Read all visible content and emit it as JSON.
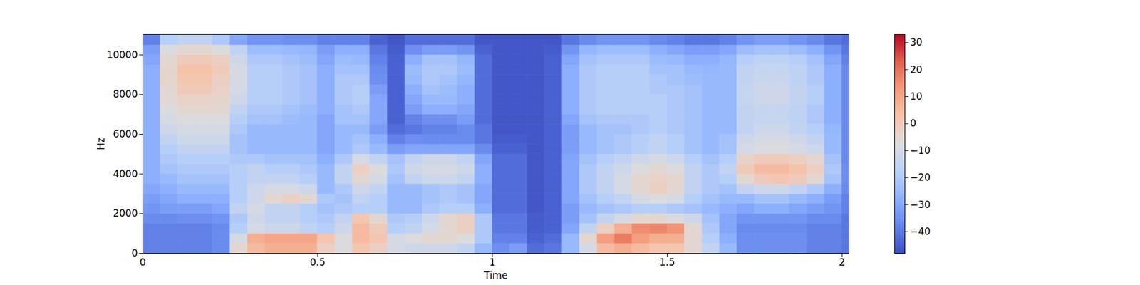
{
  "chart_data": {
    "type": "heatmap",
    "x_label": "Time",
    "y_label": "Hz",
    "xlim": [
      0,
      2.02
    ],
    "ylim": [
      0,
      11025
    ],
    "xticks": [
      0,
      0.5,
      1,
      1.5,
      2
    ],
    "yticks": [
      0,
      2000,
      4000,
      6000,
      8000,
      10000
    ],
    "color": "coolwarm",
    "x_bins": [
      0,
      0.05,
      0.1,
      0.15,
      0.2,
      0.25,
      0.3,
      0.35,
      0.4,
      0.45,
      0.5,
      0.55,
      0.6,
      0.65,
      0.7,
      0.75,
      0.8,
      0.85,
      0.9,
      0.95,
      1.0,
      1.05,
      1.1,
      1.15,
      1.2,
      1.25,
      1.3,
      1.35,
      1.4,
      1.45,
      1.5,
      1.55,
      1.6,
      1.65,
      1.7,
      1.75,
      1.8,
      1.85,
      1.9,
      1.95,
      2.0,
      2.02
    ],
    "y_bins": [
      0,
      500,
      1000,
      1500,
      2000,
      2500,
      3000,
      3500,
      4000,
      4500,
      5000,
      5500,
      6000,
      6500,
      7000,
      7500,
      8000,
      8500,
      9000,
      9500,
      10000,
      10500,
      11025
    ],
    "z": [
      [
        -38,
        -38,
        -38,
        -38,
        -36,
        -5,
        5,
        8,
        8,
        8,
        -2,
        -8,
        2,
        -2,
        -10,
        -12,
        -12,
        -12,
        -15,
        -25,
        -35,
        -32,
        -42,
        -40,
        -25,
        -10,
        5,
        8,
        5,
        2,
        2,
        -5,
        -15,
        -25,
        -35,
        -35,
        -35,
        -35,
        -38,
        -38,
        -40
      ],
      [
        -38,
        -38,
        -38,
        -38,
        -36,
        -10,
        8,
        10,
        10,
        10,
        2,
        -8,
        5,
        2,
        -10,
        -8,
        -5,
        -5,
        -8,
        -20,
        -38,
        -38,
        -44,
        -42,
        -25,
        -5,
        12,
        18,
        12,
        8,
        8,
        -5,
        -18,
        -28,
        -35,
        -35,
        -35,
        -35,
        -38,
        -38,
        -40
      ],
      [
        -38,
        -38,
        -38,
        -38,
        -36,
        -18,
        -10,
        -12,
        -12,
        -15,
        -18,
        -12,
        5,
        0,
        -18,
        -15,
        -10,
        -5,
        -2,
        -20,
        -40,
        -40,
        -45,
        -44,
        -30,
        -15,
        -2,
        8,
        15,
        16,
        14,
        -5,
        -20,
        -30,
        -36,
        -36,
        -36,
        -36,
        -38,
        -38,
        -40
      ],
      [
        -36,
        -36,
        -35,
        -35,
        -34,
        -20,
        -12,
        -15,
        -15,
        -18,
        -20,
        -15,
        2,
        -5,
        -20,
        -18,
        -12,
        -5,
        -2,
        -20,
        -40,
        -40,
        -45,
        -44,
        -32,
        -22,
        -15,
        -10,
        -5,
        -5,
        -8,
        -12,
        -22,
        -30,
        -34,
        -34,
        -34,
        -34,
        -36,
        -36,
        -40
      ],
      [
        -34,
        -32,
        -32,
        -32,
        -30,
        -15,
        -10,
        -15,
        -15,
        -18,
        -22,
        -20,
        -18,
        -18,
        -25,
        -25,
        -20,
        -18,
        -18,
        -28,
        -42,
        -42,
        -46,
        -44,
        -32,
        -25,
        -22,
        -20,
        -18,
        -18,
        -20,
        -22,
        -25,
        -28,
        -30,
        -28,
        -28,
        -30,
        -32,
        -34,
        -38
      ],
      [
        -32,
        -30,
        -28,
        -28,
        -28,
        -18,
        -12,
        -5,
        -2,
        -5,
        -20,
        -22,
        -15,
        -18,
        -25,
        -25,
        -22,
        -20,
        -22,
        -30,
        -42,
        -42,
        -46,
        -44,
        -30,
        -22,
        -18,
        -15,
        -10,
        -8,
        -10,
        -18,
        -22,
        -25,
        -25,
        -22,
        -22,
        -25,
        -28,
        -32,
        -38
      ],
      [
        -30,
        -28,
        -25,
        -25,
        -25,
        -18,
        -12,
        -10,
        -10,
        -12,
        -25,
        -20,
        -12,
        -15,
        -25,
        -25,
        -22,
        -20,
        -22,
        -30,
        -42,
        -42,
        -46,
        -44,
        -30,
        -20,
        -15,
        -10,
        -5,
        -2,
        -5,
        -15,
        -20,
        -22,
        -15,
        -12,
        -12,
        -15,
        -20,
        -28,
        -36
      ],
      [
        -28,
        -25,
        -22,
        -22,
        -22,
        -18,
        -15,
        -15,
        -15,
        -18,
        -25,
        -15,
        -5,
        -10,
        -22,
        -15,
        -12,
        -12,
        -15,
        -28,
        -42,
        -42,
        -46,
        -44,
        -30,
        -20,
        -15,
        -10,
        -5,
        -3,
        -5,
        -15,
        -20,
        -18,
        -5,
        0,
        2,
        0,
        -5,
        -22,
        -35
      ],
      [
        -28,
        -22,
        -20,
        -20,
        -20,
        -18,
        -15,
        -18,
        -18,
        -20,
        -25,
        -15,
        -2,
        -8,
        -20,
        -12,
        -10,
        -10,
        -12,
        -28,
        -42,
        -42,
        -46,
        -44,
        -30,
        -20,
        -15,
        -12,
        -8,
        -5,
        -8,
        -15,
        -20,
        -15,
        0,
        5,
        5,
        3,
        -2,
        -20,
        -35
      ],
      [
        -28,
        -20,
        -18,
        -18,
        -18,
        -20,
        -20,
        -22,
        -22,
        -22,
        -28,
        -20,
        -10,
        -15,
        -22,
        -15,
        -12,
        -12,
        -15,
        -30,
        -42,
        -42,
        -46,
        -44,
        -30,
        -22,
        -18,
        -15,
        -12,
        -10,
        -12,
        -18,
        -22,
        -18,
        -3,
        0,
        0,
        -2,
        -5,
        -22,
        -36
      ],
      [
        -28,
        -18,
        -15,
        -15,
        -15,
        -22,
        -25,
        -25,
        -25,
        -25,
        -30,
        -25,
        -20,
        -25,
        -32,
        -30,
        -30,
        -30,
        -30,
        -36,
        -44,
        -44,
        -46,
        -44,
        -32,
        -25,
        -22,
        -20,
        -18,
        -15,
        -18,
        -22,
        -25,
        -22,
        -10,
        -8,
        -8,
        -10,
        -12,
        -25,
        -36
      ],
      [
        -28,
        -15,
        -12,
        -12,
        -12,
        -22,
        -25,
        -25,
        -25,
        -25,
        -30,
        -25,
        -22,
        -28,
        -38,
        -35,
        -36,
        -36,
        -36,
        -40,
        -45,
        -45,
        -46,
        -44,
        -32,
        -25,
        -22,
        -20,
        -18,
        -15,
        -18,
        -22,
        -25,
        -22,
        -12,
        -10,
        -10,
        -12,
        -15,
        -25,
        -36
      ],
      [
        -28,
        -12,
        -10,
        -10,
        -10,
        -20,
        -25,
        -25,
        -25,
        -25,
        -30,
        -25,
        -25,
        -32,
        -42,
        -40,
        -38,
        -38,
        -36,
        -40,
        -46,
        -46,
        -46,
        -44,
        -32,
        -25,
        -22,
        -22,
        -20,
        -18,
        -20,
        -22,
        -25,
        -25,
        -15,
        -12,
        -12,
        -15,
        -18,
        -26,
        -36
      ],
      [
        -28,
        -10,
        -8,
        -8,
        -8,
        -18,
        -22,
        -22,
        -24,
        -25,
        -30,
        -22,
        -22,
        -30,
        -44,
        -38,
        -35,
        -35,
        -32,
        -42,
        -46,
        -46,
        -46,
        -44,
        -30,
        -22,
        -20,
        -20,
        -20,
        -18,
        -20,
        -22,
        -25,
        -25,
        -15,
        -14,
        -14,
        -16,
        -20,
        -28,
        -36
      ],
      [
        -28,
        -8,
        -5,
        -5,
        -5,
        -15,
        -20,
        -20,
        -22,
        -24,
        -28,
        -22,
        -20,
        -30,
        -44,
        -32,
        -28,
        -28,
        -30,
        -42,
        -46,
        -46,
        -46,
        -44,
        -28,
        -20,
        -18,
        -18,
        -18,
        -18,
        -20,
        -22,
        -25,
        -25,
        -15,
        -14,
        -14,
        -16,
        -20,
        -28,
        -36
      ],
      [
        -28,
        -6,
        -3,
        -3,
        -4,
        -12,
        -18,
        -18,
        -20,
        -22,
        -28,
        -20,
        -18,
        -30,
        -44,
        -30,
        -25,
        -25,
        -28,
        -42,
        -46,
        -46,
        -46,
        -44,
        -28,
        -20,
        -18,
        -18,
        -18,
        -18,
        -20,
        -22,
        -25,
        -25,
        -14,
        -12,
        -12,
        -15,
        -18,
        -28,
        -36
      ],
      [
        -28,
        -5,
        0,
        0,
        -3,
        -10,
        -18,
        -18,
        -20,
        -22,
        -28,
        -20,
        -18,
        -32,
        -44,
        -28,
        -22,
        -24,
        -28,
        -42,
        -46,
        -46,
        -46,
        -44,
        -28,
        -20,
        -18,
        -18,
        -18,
        -20,
        -20,
        -22,
        -25,
        -25,
        -14,
        -12,
        -12,
        -15,
        -18,
        -28,
        -36
      ],
      [
        -28,
        -4,
        2,
        2,
        -2,
        -10,
        -18,
        -18,
        -20,
        -22,
        -28,
        -20,
        -20,
        -35,
        -44,
        -25,
        -20,
        -22,
        -26,
        -42,
        -46,
        -46,
        -46,
        -44,
        -28,
        -20,
        -18,
        -18,
        -18,
        -20,
        -22,
        -24,
        -25,
        -25,
        -15,
        -13,
        -13,
        -16,
        -20,
        -28,
        -36
      ],
      [
        -28,
        -4,
        3,
        3,
        0,
        -10,
        -18,
        -18,
        -20,
        -22,
        -28,
        -22,
        -22,
        -36,
        -44,
        -24,
        -20,
        -20,
        -24,
        -42,
        -46,
        -46,
        -46,
        -44,
        -28,
        -20,
        -18,
        -18,
        -18,
        -22,
        -22,
        -25,
        -26,
        -25,
        -15,
        -14,
        -14,
        -16,
        -20,
        -28,
        -36
      ],
      [
        -30,
        -5,
        0,
        0,
        -2,
        -12,
        -20,
        -20,
        -22,
        -24,
        -30,
        -24,
        -25,
        -38,
        -44,
        -28,
        -22,
        -22,
        -26,
        -42,
        -46,
        -46,
        -46,
        -44,
        -30,
        -22,
        -20,
        -20,
        -20,
        -24,
        -25,
        -28,
        -28,
        -26,
        -18,
        -16,
        -16,
        -18,
        -22,
        -30,
        -38
      ],
      [
        -32,
        -8,
        -5,
        -5,
        -8,
        -15,
        -24,
        -24,
        -25,
        -26,
        -32,
        -28,
        -28,
        -40,
        -45,
        -35,
        -32,
        -32,
        -34,
        -44,
        -46,
        -46,
        -46,
        -45,
        -34,
        -26,
        -24,
        -24,
        -24,
        -28,
        -30,
        -32,
        -32,
        -30,
        -24,
        -22,
        -22,
        -24,
        -28,
        -34,
        -40
      ],
      [
        -38,
        -18,
        -15,
        -15,
        -20,
        -30,
        -34,
        -34,
        -35,
        -35,
        -38,
        -38,
        -38,
        -44,
        -46,
        -42,
        -42,
        -42,
        -42,
        -46,
        -46,
        -46,
        -46,
        -46,
        -40,
        -36,
        -34,
        -34,
        -34,
        -36,
        -38,
        -40,
        -40,
        -38,
        -34,
        -32,
        -32,
        -34,
        -36,
        -40,
        -42
      ]
    ],
    "colorbar": {
      "range": [
        -48,
        33
      ],
      "ticks": [
        -40,
        -30,
        -20,
        -10,
        0,
        10,
        20,
        30
      ]
    }
  }
}
